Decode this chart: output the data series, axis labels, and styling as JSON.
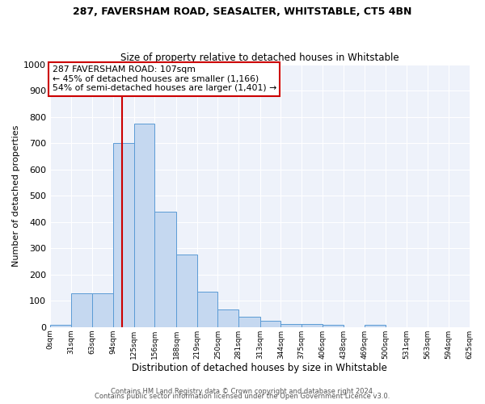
{
  "title1": "287, FAVERSHAM ROAD, SEASALTER, WHITSTABLE, CT5 4BN",
  "title2": "Size of property relative to detached houses in Whitstable",
  "xlabel": "Distribution of detached houses by size in Whitstable",
  "ylabel": "Number of detached properties",
  "bin_edges": [
    0,
    31,
    63,
    94,
    125,
    156,
    188,
    219,
    250,
    281,
    313,
    344,
    375,
    406,
    438,
    469,
    500,
    531,
    563,
    594,
    625
  ],
  "bar_heights": [
    8,
    128,
    128,
    700,
    775,
    440,
    275,
    135,
    68,
    40,
    25,
    13,
    13,
    8,
    0,
    8,
    0,
    0,
    0,
    0
  ],
  "bar_color": "#c5d8f0",
  "bar_edge_color": "#5b9bd5",
  "property_size": 107,
  "vline_color": "#cc0000",
  "annotation_text": "287 FAVERSHAM ROAD: 107sqm\n← 45% of detached houses are smaller (1,166)\n54% of semi-detached houses are larger (1,401) →",
  "annotation_box_color": "#ffffff",
  "annotation_box_edge": "#cc0000",
  "ylim": [
    0,
    1000
  ],
  "yticks": [
    0,
    100,
    200,
    300,
    400,
    500,
    600,
    700,
    800,
    900,
    1000
  ],
  "bg_color": "#eef2fa",
  "grid_color": "#ffffff",
  "footer1": "Contains HM Land Registry data © Crown copyright and database right 2024.",
  "footer2": "Contains public sector information licensed under the Open Government Licence v3.0.",
  "tick_labels": [
    "0sqm",
    "31sqm",
    "63sqm",
    "94sqm",
    "125sqm",
    "156sqm",
    "188sqm",
    "219sqm",
    "250sqm",
    "281sqm",
    "313sqm",
    "344sqm",
    "375sqm",
    "406sqm",
    "438sqm",
    "469sqm",
    "500sqm",
    "531sqm",
    "563sqm",
    "594sqm",
    "625sqm"
  ]
}
